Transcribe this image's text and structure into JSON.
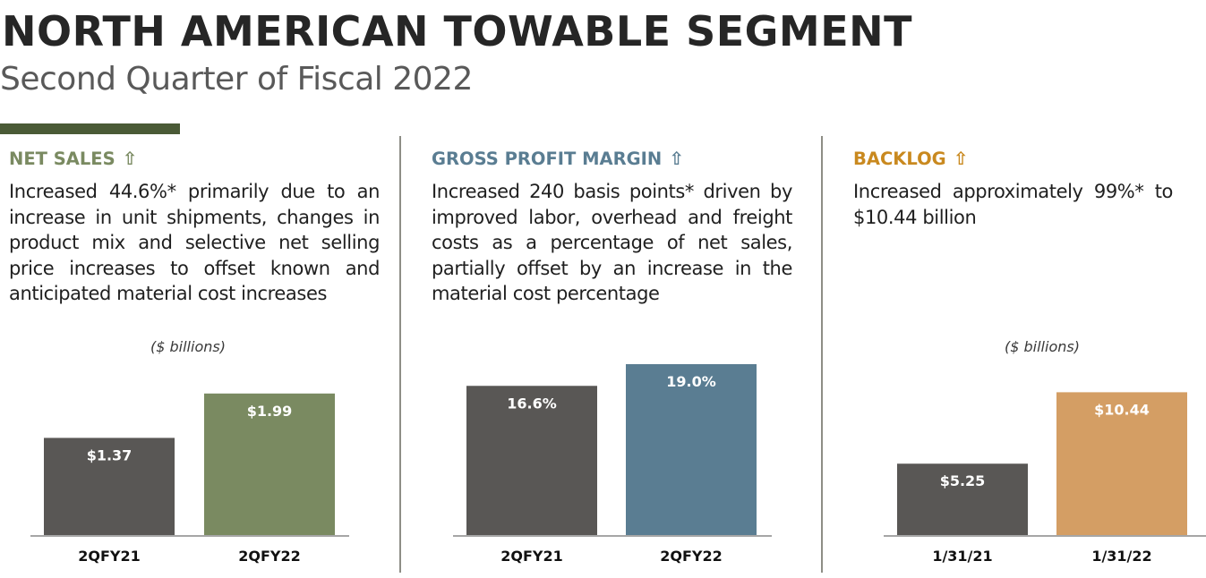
{
  "header": {
    "title": "NORTH AMERICAN TOWABLE SEGMENT",
    "subtitle": "Second Quarter of Fiscal 2022",
    "accent_color": "#4a5a36"
  },
  "panels": [
    {
      "heading": "NET SALES",
      "heading_color": "#7a8a61",
      "arrow_icon": "up-arrow-icon",
      "arrow_glyph": "⇧",
      "text": "Increased 44.6%* primarily due to an increase in unit shipments, changes in product mix and selective net selling price increases to offset known and anticipated material cost increases",
      "unit_label": "($ billions)"
    },
    {
      "heading": "GROSS PROFIT MARGIN",
      "heading_color": "#5a7d92",
      "arrow_icon": "up-arrow-icon",
      "arrow_glyph": "⇧",
      "text": "Increased 240 basis points* driven by improved labor, overhead and freight costs as a percentage of net sales, partially offset by an increase in the material cost percentage",
      "unit_label": ""
    },
    {
      "heading": "BACKLOG",
      "heading_color": "#c9891f",
      "arrow_icon": "up-arrow-icon",
      "arrow_glyph": "⇧",
      "text": "Increased approximately 99%* to $10.44 billion",
      "unit_label": "($ billions)"
    }
  ],
  "chart_data": [
    {
      "type": "bar",
      "title": "Net Sales",
      "ylabel": "($ billions)",
      "categories": [
        "2QFY21",
        "2QFY22"
      ],
      "values": [
        1.37,
        1.99
      ],
      "labels": [
        "$1.37",
        "$1.99"
      ],
      "colors": [
        "#595755",
        "#7a8a61"
      ],
      "ylim": [
        0,
        2.5
      ],
      "grid": false
    },
    {
      "type": "bar",
      "title": "Gross Profit Margin",
      "ylabel": "",
      "categories": [
        "2QFY21",
        "2QFY22"
      ],
      "values": [
        16.6,
        19.0
      ],
      "labels": [
        "16.6%",
        "19.0%"
      ],
      "colors": [
        "#595755",
        "#5a7d92"
      ],
      "ylim": [
        0,
        19.0
      ],
      "grid": false
    },
    {
      "type": "bar",
      "title": "Backlog",
      "ylabel": "($ billions)",
      "categories": [
        "1/31/21",
        "1/31/22"
      ],
      "values": [
        5.25,
        10.44
      ],
      "labels": [
        "$5.25",
        "$10.44"
      ],
      "colors": [
        "#595755",
        "#d49e64"
      ],
      "ylim": [
        0,
        13
      ],
      "grid": false
    }
  ]
}
